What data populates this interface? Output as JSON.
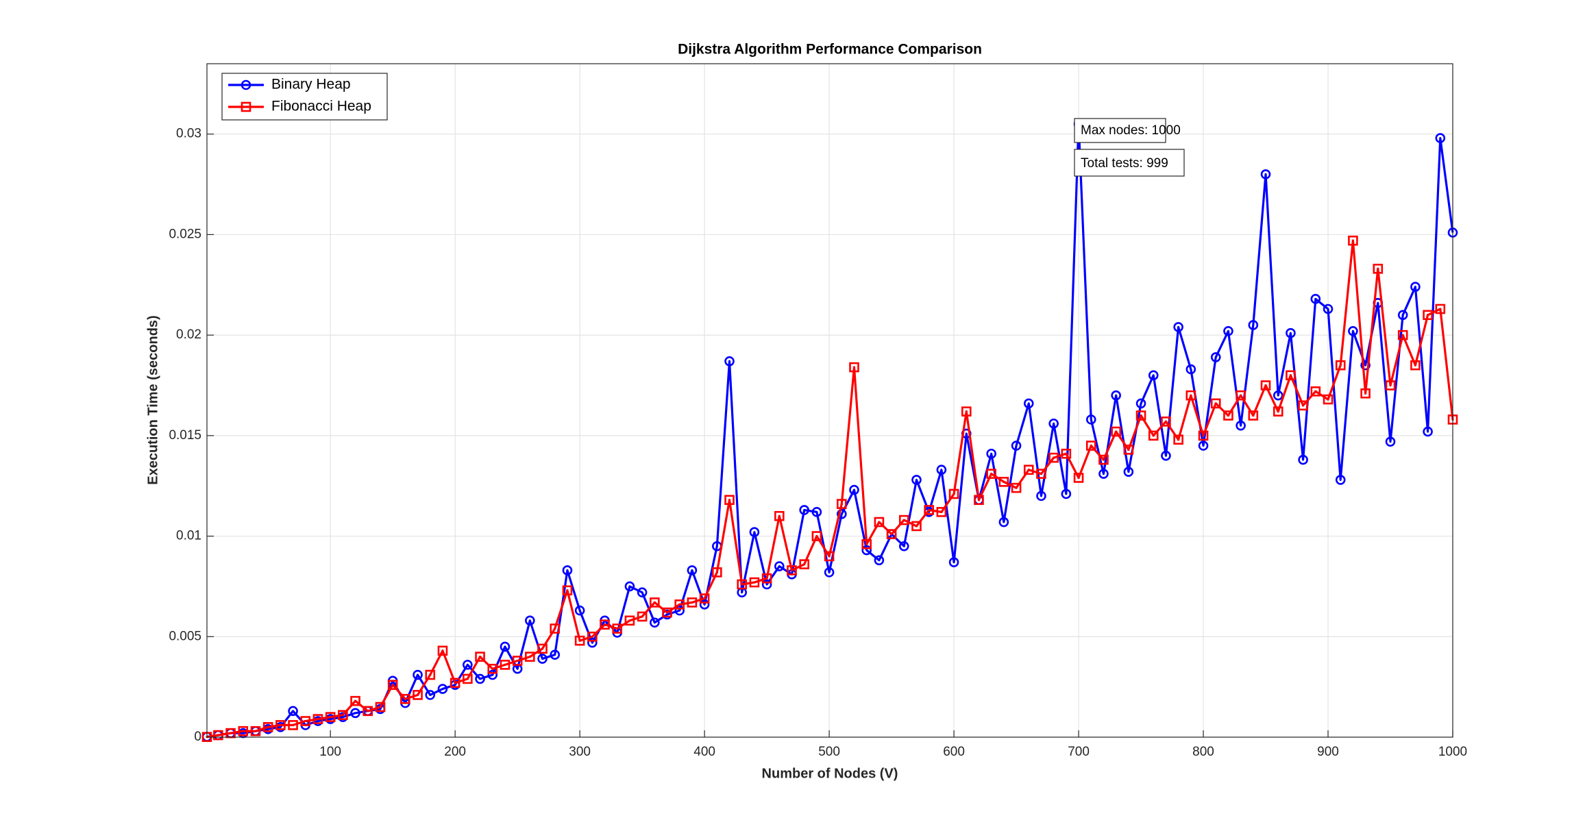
{
  "chart_data": {
    "type": "line",
    "title": "Dijkstra Algorithm Performance Comparison",
    "x_label": "Number of Nodes (V)",
    "y_label": "Execution Time (seconds)",
    "x": [
      1,
      10,
      20,
      30,
      40,
      50,
      60,
      70,
      80,
      90,
      100,
      110,
      120,
      130,
      140,
      150,
      160,
      170,
      180,
      190,
      200,
      210,
      220,
      230,
      240,
      250,
      260,
      270,
      280,
      290,
      300,
      310,
      320,
      330,
      340,
      350,
      360,
      370,
      380,
      390,
      400,
      410,
      420,
      430,
      440,
      450,
      460,
      470,
      480,
      490,
      500,
      510,
      520,
      530,
      540,
      550,
      560,
      570,
      580,
      590,
      600,
      610,
      620,
      630,
      640,
      650,
      660,
      670,
      680,
      690,
      700,
      710,
      720,
      730,
      740,
      750,
      760,
      770,
      780,
      790,
      800,
      810,
      820,
      830,
      840,
      850,
      860,
      870,
      880,
      890,
      900,
      910,
      920,
      930,
      940,
      950,
      960,
      970,
      980,
      990,
      1000
    ],
    "series": [
      {
        "name": "Binary Heap",
        "color": "#0000ff",
        "marker": "circle",
        "values": [
          2e-05,
          0.0001,
          0.0002,
          0.0002,
          0.0003,
          0.0004,
          0.0005,
          0.0013,
          0.0006,
          0.0008,
          0.0009,
          0.001,
          0.0012,
          0.0013,
          0.0014,
          0.0028,
          0.0017,
          0.0031,
          0.0021,
          0.0024,
          0.0026,
          0.0036,
          0.0029,
          0.0031,
          0.0045,
          0.0034,
          0.0058,
          0.0039,
          0.0041,
          0.0083,
          0.0063,
          0.0047,
          0.0058,
          0.0052,
          0.0075,
          0.0072,
          0.0057,
          0.0061,
          0.0063,
          0.0083,
          0.0066,
          0.0095,
          0.0187,
          0.0072,
          0.0102,
          0.0076,
          0.0085,
          0.0081,
          0.0113,
          0.0112,
          0.0082,
          0.0111,
          0.0123,
          0.0093,
          0.0088,
          0.0101,
          0.0095,
          0.0128,
          0.0112,
          0.0133,
          0.0087,
          0.0151,
          0.0118,
          0.0141,
          0.0107,
          0.0145,
          0.0166,
          0.012,
          0.0156,
          0.0121,
          0.0305,
          0.0158,
          0.0131,
          0.017,
          0.0132,
          0.0166,
          0.018,
          0.014,
          0.0204,
          0.0183,
          0.0145,
          0.0189,
          0.0202,
          0.0155,
          0.0205,
          0.028,
          0.017,
          0.0201,
          0.0138,
          0.0218,
          0.0213,
          0.0128,
          0.0202,
          0.0185,
          0.0216,
          0.0147,
          0.021,
          0.0224,
          0.0152,
          0.0298,
          0.0251
        ]
      },
      {
        "name": "Fibonacci Heap",
        "color": "#ff0000",
        "marker": "square",
        "values": [
          1e-05,
          0.0001,
          0.0002,
          0.0003,
          0.0003,
          0.0005,
          0.0006,
          0.0006,
          0.0008,
          0.0009,
          0.001,
          0.0011,
          0.0018,
          0.0013,
          0.0015,
          0.0026,
          0.0019,
          0.0021,
          0.0031,
          0.0043,
          0.0027,
          0.0029,
          0.004,
          0.0034,
          0.0036,
          0.0038,
          0.004,
          0.0044,
          0.0054,
          0.0073,
          0.0048,
          0.005,
          0.0056,
          0.0054,
          0.0058,
          0.006,
          0.0067,
          0.0062,
          0.0066,
          0.0067,
          0.0069,
          0.0082,
          0.0118,
          0.0076,
          0.0077,
          0.0079,
          0.011,
          0.0083,
          0.0086,
          0.01,
          0.009,
          0.0116,
          0.0184,
          0.0096,
          0.0107,
          0.0101,
          0.0108,
          0.0105,
          0.0113,
          0.0112,
          0.0121,
          0.0162,
          0.0118,
          0.0131,
          0.0127,
          0.0124,
          0.0133,
          0.0131,
          0.0139,
          0.0141,
          0.0129,
          0.0145,
          0.0138,
          0.0152,
          0.0143,
          0.016,
          0.015,
          0.0157,
          0.0148,
          0.017,
          0.015,
          0.0166,
          0.016,
          0.017,
          0.016,
          0.0175,
          0.0162,
          0.018,
          0.0165,
          0.0172,
          0.0168,
          0.0185,
          0.0247,
          0.0171,
          0.0233,
          0.0175,
          0.02,
          0.0185,
          0.021,
          0.0213,
          0.0158
        ]
      }
    ],
    "xlim": [
      1,
      1000
    ],
    "xticks": [
      100,
      200,
      300,
      400,
      500,
      600,
      700,
      800,
      900,
      1000
    ],
    "ylim": [
      0,
      0.0335
    ],
    "yticks": [
      0,
      0.005,
      0.01,
      0.015,
      0.02,
      0.025,
      0.03
    ],
    "grid": true,
    "legend_position": "upper-left",
    "annotations": [
      "Max nodes: 1000",
      "Total tests: 999"
    ]
  }
}
